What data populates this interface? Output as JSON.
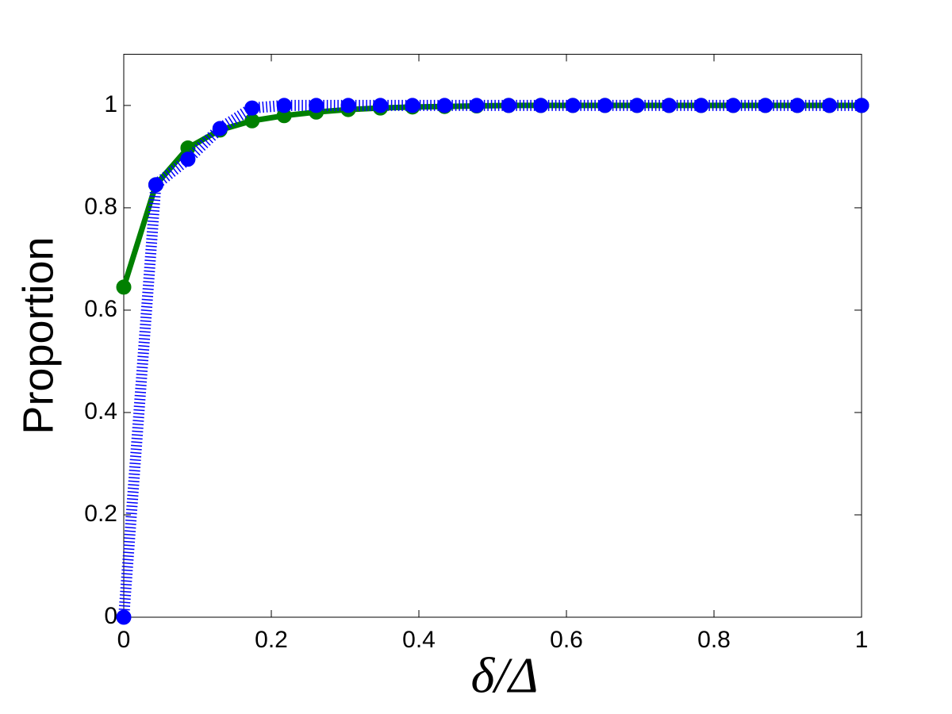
{
  "chart_data": {
    "type": "line",
    "x_label": "δ/Δ",
    "y_label": "Proportion",
    "x": [
      0,
      0.0435,
      0.087,
      0.1304,
      0.1739,
      0.2174,
      0.2609,
      0.3043,
      0.3478,
      0.3913,
      0.4348,
      0.4783,
      0.5217,
      0.5652,
      0.6087,
      0.6522,
      0.6957,
      0.7391,
      0.7826,
      0.8261,
      0.8696,
      0.913,
      0.9565,
      1
    ],
    "series": [
      {
        "color": "#008000",
        "dash": "solid",
        "values": [
          0.645,
          0.845,
          0.917,
          0.952,
          0.97,
          0.98,
          0.987,
          0.992,
          0.995,
          0.997,
          0.998,
          0.999,
          1,
          1,
          1,
          1,
          1,
          1,
          1,
          1,
          1,
          1,
          1,
          1
        ]
      },
      {
        "color": "#0000ff",
        "dash": "dotted",
        "values": [
          0,
          0.845,
          0.895,
          0.955,
          0.995,
          1,
          1,
          1,
          1,
          1,
          1,
          1,
          1,
          1,
          1,
          1,
          1,
          1,
          1,
          1,
          1,
          1,
          1,
          1
        ]
      }
    ],
    "xlim": [
      0,
      1
    ],
    "xticks": [
      0,
      0.2,
      0.4,
      0.6,
      0.8,
      1
    ],
    "ylim": [
      0,
      1.1
    ],
    "yticks": [
      0,
      0.2,
      0.4,
      0.6,
      0.8,
      1
    ],
    "grid": false
  }
}
